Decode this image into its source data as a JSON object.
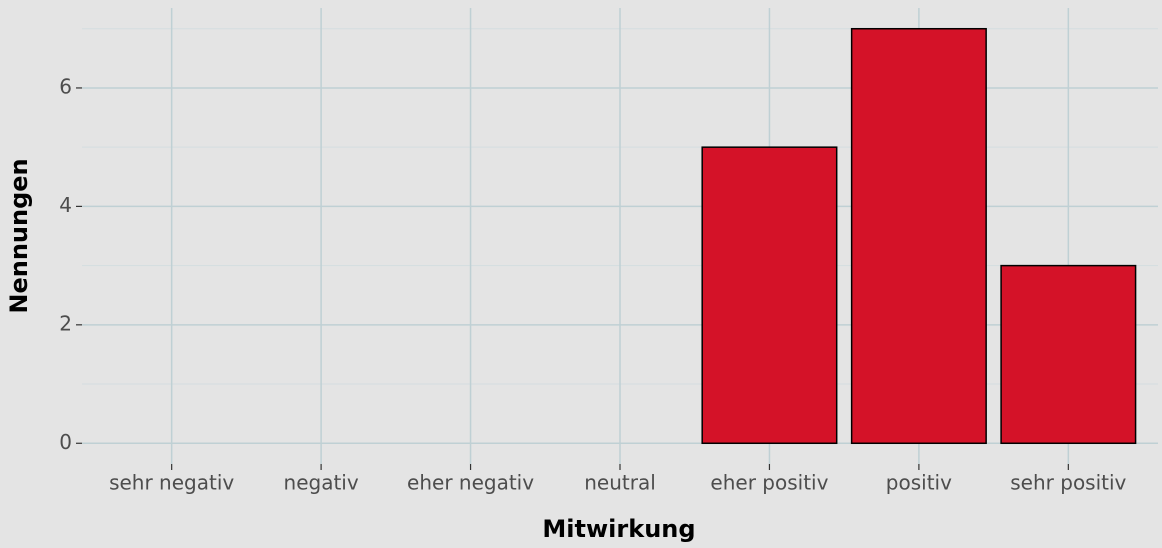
{
  "chart_data": {
    "type": "bar",
    "x_label": "Mitwirkung",
    "y_label": "Nennungen",
    "categories": [
      "sehr negativ",
      "negativ",
      "eher negativ",
      "neutral",
      "eher positiv",
      "positiv",
      "sehr positiv"
    ],
    "values": [
      0,
      0,
      0,
      0,
      5,
      7,
      3
    ],
    "color": "#d41228",
    "ylim": [
      -0.35,
      7.35
    ],
    "yticks": [
      0,
      2,
      4,
      6
    ],
    "grid": true
  }
}
